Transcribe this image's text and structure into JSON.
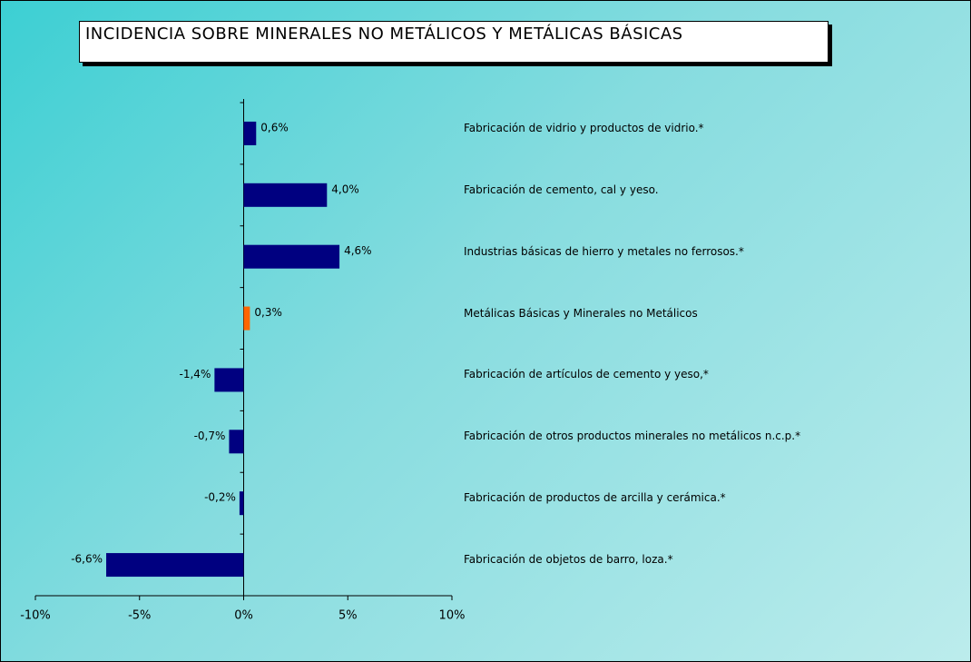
{
  "chart_data": {
    "type": "barh",
    "title": "INCIDENCIA SOBRE MINERALES NO METÁLICOS Y METÁLICAS BÁSICAS",
    "categories": [
      "Fabricación de vidrio y productos de vidrio.*",
      "Fabricación de cemento, cal y yeso.",
      "Industrias básicas de hierro y metales no ferrosos.*",
      "Metálicas Básicas y Minerales no Metálicos",
      "Fabricación de artículos de cemento y yeso,*",
      "Fabricación de otros productos minerales no metálicos n.c.p.*",
      "Fabricación de productos de arcilla y cerámica.*",
      "Fabricación de objetos de barro, loza.*"
    ],
    "values": [
      0.6,
      4.0,
      4.6,
      0.3,
      -1.4,
      -0.7,
      -0.2,
      -6.6
    ],
    "value_labels": [
      "0,6%",
      "4,0%",
      "4,6%",
      "0,3%",
      "-1,4%",
      "-0,7%",
      "-0,2%",
      "-6,6%"
    ],
    "colors": [
      "#000080",
      "#000080",
      "#000080",
      "#ff6600",
      "#000080",
      "#000080",
      "#000080",
      "#000080"
    ],
    "xlim": [
      -10,
      10
    ],
    "xticks": [
      {
        "value": -10,
        "label": "-10%"
      },
      {
        "value": -5,
        "label": "-5%"
      },
      {
        "value": 0,
        "label": "0%"
      },
      {
        "value": 5,
        "label": "5%"
      },
      {
        "value": 10,
        "label": "10%"
      }
    ],
    "grid": false
  }
}
